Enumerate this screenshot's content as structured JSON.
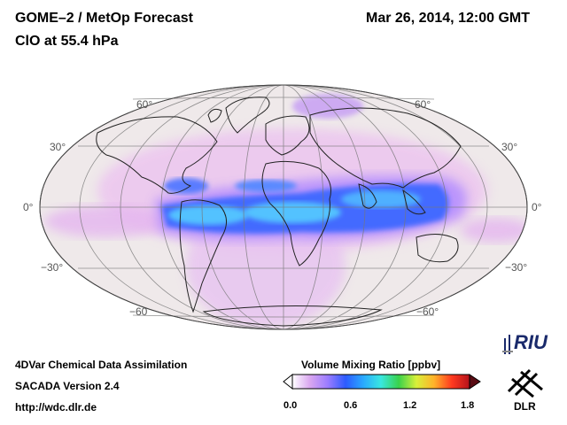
{
  "header": {
    "title_line1": "GOME–2 / MetOp Forecast",
    "title_line2": "ClO at 55.4 hPa",
    "datetime": "Mar 26, 2014, 12:00 GMT"
  },
  "map": {
    "projection": "mollweide",
    "lat_labels_left": [
      "60°",
      "30°",
      "0°",
      "−30°",
      "−60"
    ],
    "lat_labels_right": [
      "60°",
      "30°",
      "0°",
      "−30°",
      "−60°"
    ],
    "colors": {
      "background": "#efe9ea",
      "low": "#f0dced",
      "mid_pink": "#e6b6ec",
      "violet": "#b58cff",
      "blue": "#3d66ff",
      "cyan": "#4ec4ff",
      "coast": "#222222"
    }
  },
  "footer": {
    "line1": "4DVar Chemical Data Assimilation",
    "line2": "SACADA Version 2.4",
    "line3": "http://wdc.dlr.de"
  },
  "colorbar": {
    "title": "Volume Mixing Ratio [ppbv]",
    "ticks": [
      "0.0",
      "0.6",
      "1.2",
      "1.8"
    ],
    "colors": [
      "#ffffff",
      "#d9a6f0",
      "#9b7cff",
      "#2d5bff",
      "#2aa9ff",
      "#39e7e0",
      "#39d24b",
      "#d8f03a",
      "#ffb22a",
      "#ff3a1f",
      "#b5121a"
    ]
  },
  "logos": {
    "riu": "RIU",
    "dlr": "DLR"
  }
}
